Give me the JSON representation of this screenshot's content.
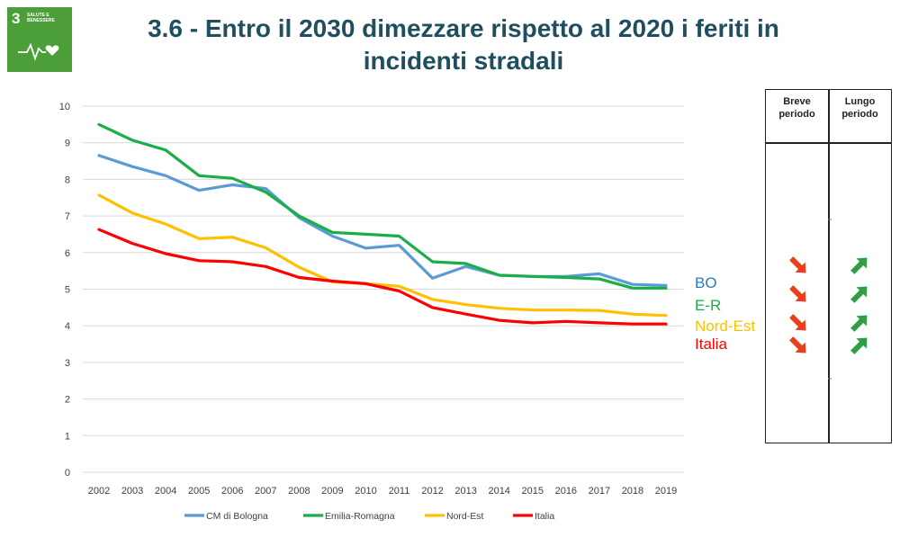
{
  "header": {
    "title_line1": "3.6 - Entro il 2030 dimezzare rispetto al 2020 i feriti in",
    "title_line2": "incidenti stradali"
  },
  "sdg_badge": {
    "number": "3",
    "text": "SALUTE E BENESSERE",
    "color": "#4c9f38",
    "icon": "heartbeat-heart-icon"
  },
  "side_table": {
    "col1_line1": "Breve",
    "col1_line2": "periodo",
    "col2_line1": "Lungo",
    "col2_line2": "periodo",
    "short_term_arrows": [
      "down-right-arrow",
      "down-right-arrow",
      "down-right-arrow",
      "down-right-arrow"
    ],
    "long_term_arrows": [
      "up-right-arrow",
      "up-right-arrow",
      "up-right-arrow",
      "up-right-arrow"
    ],
    "short_color": "#e8401c",
    "long_color": "#2ea043"
  },
  "chart_data": {
    "type": "line",
    "title": "",
    "xlabel": "",
    "ylabel": "",
    "ylim": [
      0,
      10
    ],
    "yticks": [
      0,
      1,
      2,
      3,
      4,
      5,
      6,
      7,
      8,
      9,
      10
    ],
    "grid": "horizontal",
    "legend_position": "bottom",
    "x": [
      "2002",
      "2003",
      "2004",
      "2005",
      "2006",
      "2007",
      "2008",
      "2009",
      "2010",
      "2011",
      "2012",
      "2013",
      "2014",
      "2015",
      "2016",
      "2017",
      "2018",
      "2019"
    ],
    "series": [
      {
        "name": "CM di Bologna",
        "color": "#5b9bd5",
        "values": [
          8.65,
          8.35,
          8.1,
          7.7,
          7.85,
          7.75,
          6.95,
          6.45,
          6.12,
          6.2,
          5.3,
          5.62,
          5.38,
          5.35,
          5.35,
          5.42,
          5.13,
          5.1
        ]
      },
      {
        "name": "Emilia-Romagna",
        "color": "#1aae48",
        "values": [
          9.5,
          9.07,
          8.8,
          8.1,
          8.03,
          7.65,
          7.0,
          6.55,
          6.5,
          6.45,
          5.75,
          5.7,
          5.38,
          5.35,
          5.32,
          5.28,
          5.03,
          5.03
        ]
      },
      {
        "name": "Nord-Est",
        "color": "#ffc000",
        "values": [
          7.57,
          7.08,
          6.78,
          6.38,
          6.42,
          6.13,
          5.6,
          5.2,
          5.15,
          5.08,
          4.72,
          4.58,
          4.48,
          4.43,
          4.43,
          4.42,
          4.32,
          4.28
        ]
      },
      {
        "name": "Italia",
        "color": "#ff0000",
        "values": [
          6.63,
          6.25,
          5.97,
          5.78,
          5.75,
          5.62,
          5.32,
          5.22,
          5.15,
          4.95,
          4.5,
          4.32,
          4.15,
          4.08,
          4.12,
          4.08,
          4.05,
          4.05
        ]
      }
    ],
    "end_labels": [
      {
        "text": "BO",
        "color": "#2e7bc4"
      },
      {
        "text": "E-R",
        "color": "#1aae48"
      },
      {
        "text": "Nord-Est",
        "color": "#ffc000"
      },
      {
        "text": "Italia",
        "color": "#ff0000"
      }
    ]
  }
}
